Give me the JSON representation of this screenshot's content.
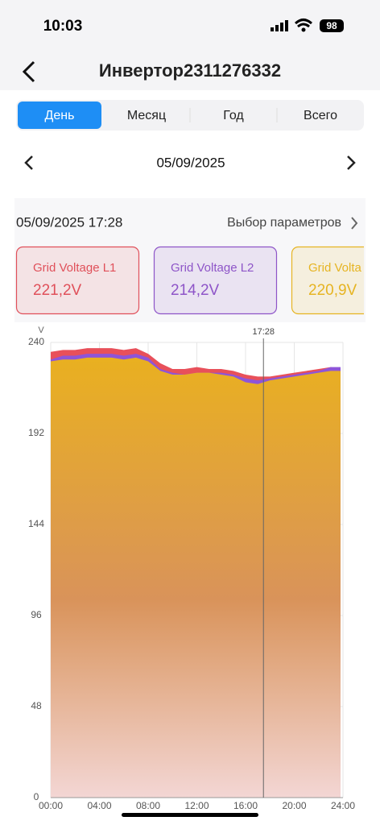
{
  "status_bar": {
    "time": "10:03",
    "battery": "98"
  },
  "header": {
    "title": "Инвертор2311276332"
  },
  "tabs": {
    "items": [
      "День",
      "Месяц",
      "Год",
      "Всего"
    ],
    "active": 0,
    "active_color": "#1e8ef5"
  },
  "date_nav": {
    "date": "05/09/2025"
  },
  "panel": {
    "timestamp": "05/09/2025 17:28",
    "params_button": "Выбор параметров"
  },
  "cards": [
    {
      "name": "Grid Voltage L1",
      "value": "221,2V",
      "color": "#e0505a"
    },
    {
      "name": "Grid Voltage L2",
      "value": "214,2V",
      "color": "#8e55c8"
    },
    {
      "name": "Grid Volta",
      "value": "220,9V",
      "color": "#e6b422"
    }
  ],
  "chart_data": {
    "type": "area",
    "y_unit": "V",
    "x": [
      0,
      1,
      2,
      3,
      4,
      5,
      6,
      7,
      8,
      9,
      10,
      11,
      12,
      13,
      14,
      15,
      16,
      17,
      18,
      19,
      20,
      21,
      22,
      23,
      23.8
    ],
    "xlim": [
      0,
      24
    ],
    "xticks": [
      {
        "value": 0,
        "label": "00:00"
      },
      {
        "value": 4,
        "label": "04:00"
      },
      {
        "value": 8,
        "label": "08:00"
      },
      {
        "value": 12,
        "label": "12:00"
      },
      {
        "value": 16,
        "label": "16:00"
      },
      {
        "value": 20,
        "label": "20:00"
      },
      {
        "value": 24,
        "label": "24:00"
      }
    ],
    "ylim": [
      0,
      240
    ],
    "yticks": [
      0,
      48,
      96,
      144,
      192,
      240
    ],
    "grid": true,
    "cursor": {
      "value": 17.47,
      "label": "17:28"
    },
    "series": [
      {
        "color": "#e8505a",
        "values": [
          235,
          236,
          236,
          237,
          237,
          237,
          236,
          237,
          234,
          229,
          226,
          226,
          227,
          226,
          226,
          225,
          223,
          222,
          222,
          223,
          224,
          225,
          226,
          227,
          226
        ]
      },
      {
        "color": "#8e55d8",
        "values": [
          231,
          233,
          233,
          234,
          234,
          234,
          233,
          234,
          232,
          226,
          224,
          223,
          224,
          224,
          224,
          223,
          221,
          220,
          221,
          222,
          223,
          224,
          225,
          227,
          227
        ]
      },
      {
        "color": "#e9b020",
        "values": [
          230,
          231,
          231,
          232,
          232,
          232,
          231,
          232,
          230,
          225,
          223,
          223,
          224,
          224,
          223,
          222,
          219,
          218,
          220,
          221,
          222,
          223,
          224,
          225,
          225
        ]
      }
    ]
  }
}
